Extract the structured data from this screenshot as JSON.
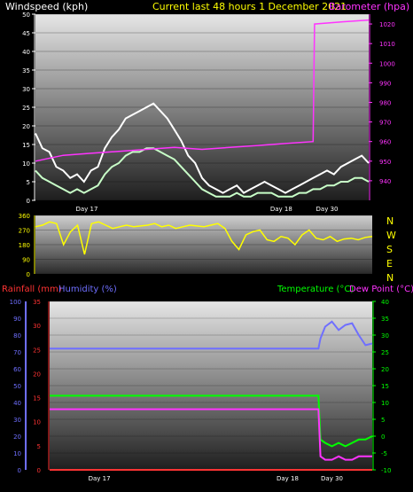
{
  "header": {
    "left_title": "Windspeed (kph)",
    "center_title": "Current last 48 hours 1 December 2021",
    "right_title": "Barometer (hpa)"
  },
  "colors": {
    "wind_white": "#ffffff",
    "wind_green": "#c8ffc8",
    "barometer": "#ff33ff",
    "direction": "#ffff00",
    "rain": "#ff3333",
    "humidity": "#6f6fff",
    "temperature": "#00ff00",
    "dewpoint": "#ff33ff",
    "center_title": "#ffff00"
  },
  "chart_data": [
    {
      "type": "line",
      "name": "wind-barometer",
      "title": "Current last 48 hours 1 December 2021",
      "ylabel": "Windspeed (kph)",
      "y2label": "Barometer (hpa)",
      "ylim": [
        0,
        50
      ],
      "y2lim": [
        930,
        1025
      ],
      "yticks": [
        "0",
        "5",
        "10",
        "15",
        "20",
        "25",
        "30",
        "35",
        "40",
        "45",
        "50"
      ],
      "y2ticks": [
        "940",
        "950",
        "960",
        "970",
        "980",
        "990",
        "1000",
        "1010",
        "1020"
      ],
      "xlim": [
        0,
        48
      ],
      "xtick_labels": [
        {
          "label": "Day 17",
          "x": 7.4
        },
        {
          "label": "Day 18",
          "x": 35.4
        },
        {
          "label": "Day 30",
          "x": 42.0
        }
      ],
      "series": [
        {
          "name": "Windspeed (kph)",
          "role": "gust",
          "color": "#ffffff",
          "x": [
            0,
            1,
            2,
            3,
            4,
            5,
            6,
            7,
            8,
            9,
            10,
            11,
            12,
            13,
            14,
            15,
            16,
            17,
            18,
            19,
            20,
            21,
            22,
            23,
            24,
            25,
            26,
            27,
            28,
            29,
            30,
            31,
            32,
            33,
            34,
            35,
            36,
            37,
            38,
            39,
            40,
            41,
            42,
            43,
            44,
            45,
            46,
            47,
            48
          ],
          "values": [
            18,
            14,
            13,
            9,
            8,
            6,
            7,
            5,
            8,
            9,
            14,
            17,
            19,
            22,
            23,
            24,
            25,
            26,
            24,
            22,
            19,
            16,
            12,
            10,
            6,
            4,
            3,
            2,
            3,
            4,
            2,
            3,
            4,
            5,
            4,
            3,
            2,
            3,
            4,
            5,
            6,
            7,
            8,
            7,
            9,
            10,
            11,
            12,
            10
          ]
        },
        {
          "name": "Windspeed (kph)",
          "role": "average",
          "color": "#c8ffc8",
          "x": [
            0,
            1,
            2,
            3,
            4,
            5,
            6,
            7,
            8,
            9,
            10,
            11,
            12,
            13,
            14,
            15,
            16,
            17,
            18,
            19,
            20,
            21,
            22,
            23,
            24,
            25,
            26,
            27,
            28,
            29,
            30,
            31,
            32,
            33,
            34,
            35,
            36,
            37,
            38,
            39,
            40,
            41,
            42,
            43,
            44,
            45,
            46,
            47,
            48
          ],
          "values": [
            8,
            6,
            5,
            4,
            3,
            2,
            3,
            2,
            3,
            4,
            7,
            9,
            10,
            12,
            13,
            13,
            14,
            14,
            13,
            12,
            11,
            9,
            7,
            5,
            3,
            2,
            1,
            1,
            1,
            2,
            1,
            1,
            2,
            2,
            2,
            1,
            1,
            1,
            2,
            2,
            3,
            3,
            4,
            4,
            5,
            5,
            6,
            6,
            5
          ]
        },
        {
          "name": "Barometer (hpa)",
          "axis": "right",
          "color": "#ff33ff",
          "x": [
            0,
            4,
            8,
            12,
            16,
            20,
            24,
            28,
            32,
            36,
            40,
            40.2,
            44,
            48
          ],
          "values": [
            950,
            953,
            954,
            955,
            956,
            957,
            956,
            957,
            958,
            959,
            960,
            1020,
            1021,
            1022
          ]
        }
      ]
    },
    {
      "type": "line",
      "name": "wind-direction",
      "ylim": [
        0,
        360
      ],
      "yticks": [
        "0",
        "90",
        "180",
        "270",
        "360"
      ],
      "compass_labels": [
        "N",
        "W",
        "S",
        "E",
        "N"
      ],
      "xlim": [
        0,
        48
      ],
      "series": [
        {
          "name": "Wind direction",
          "color": "#ffff00",
          "x": [
            0,
            1,
            2,
            3,
            4,
            5,
            6,
            7,
            8,
            9,
            10,
            11,
            12,
            13,
            14,
            15,
            16,
            17,
            18,
            19,
            20,
            21,
            22,
            23,
            24,
            25,
            26,
            27,
            28,
            29,
            30,
            31,
            32,
            33,
            34,
            35,
            36,
            37,
            38,
            39,
            40,
            41,
            42,
            43,
            44,
            45,
            46,
            47,
            48
          ],
          "values": [
            290,
            300,
            320,
            310,
            180,
            260,
            300,
            120,
            310,
            320,
            300,
            280,
            290,
            300,
            290,
            295,
            300,
            310,
            290,
            300,
            280,
            290,
            300,
            295,
            290,
            300,
            310,
            280,
            200,
            150,
            240,
            260,
            270,
            210,
            200,
            230,
            220,
            180,
            240,
            270,
            220,
            210,
            230,
            200,
            215,
            220,
            210,
            225,
            230
          ]
        }
      ]
    },
    {
      "type": "line",
      "name": "rain-humidity-temperature",
      "ylabel": "Rainfall (mm)",
      "ylabel2": "Humidity (%)",
      "y2label": "Temperature (°C)",
      "y2label2": "Dew Point (°C)",
      "humidity_ylim": [
        0,
        100
      ],
      "humidity_ticks": [
        "0",
        "10",
        "20",
        "30",
        "40",
        "50",
        "60",
        "70",
        "80",
        "90",
        "100"
      ],
      "rain_ylim": [
        0,
        35
      ],
      "rain_ticks": [
        "0",
        "5",
        "10",
        "15",
        "20",
        "25",
        "30",
        "35"
      ],
      "temp_ylim": [
        -10,
        40
      ],
      "temp_ticks": [
        "-10",
        "-5",
        "0",
        "5",
        "10",
        "15",
        "20",
        "25",
        "30",
        "35",
        "40"
      ],
      "xlim": [
        0,
        48
      ],
      "xtick_labels": [
        {
          "label": "Day 17",
          "x": 7.4
        },
        {
          "label": "Day 18",
          "x": 35.4
        },
        {
          "label": "Day 30",
          "x": 42.0
        }
      ],
      "series": [
        {
          "name": "Rainfall (mm)",
          "axis": "rain",
          "color": "#ff3333",
          "x": [
            0,
            48
          ],
          "values": [
            0,
            0
          ]
        },
        {
          "name": "Humidity (%)",
          "axis": "humidity",
          "color": "#6f6fff",
          "x": [
            0,
            40,
            40.3,
            41,
            42,
            43,
            44,
            45,
            46,
            47,
            48
          ],
          "values": [
            72,
            72,
            78,
            85,
            88,
            83,
            86,
            87,
            80,
            74,
            75
          ]
        },
        {
          "name": "Temperature (°C)",
          "axis": "temp",
          "color": "#00ff00",
          "x": [
            0,
            40,
            40.3,
            41,
            42,
            43,
            44,
            45,
            46,
            47,
            48
          ],
          "values": [
            12,
            12,
            -1,
            -2,
            -3,
            -2,
            -3,
            -2,
            -1,
            -1,
            0
          ]
        },
        {
          "name": "Dew Point (°C)",
          "axis": "temp",
          "color": "#ff33ff",
          "x": [
            0,
            40,
            40.3,
            41,
            42,
            43,
            44,
            45,
            46,
            47,
            48
          ],
          "values": [
            8,
            8,
            -6,
            -7,
            -7,
            -6,
            -7,
            -7,
            -6,
            -6,
            -6
          ]
        }
      ]
    }
  ],
  "bottom_header": {
    "rain_label": "Rainfall (mm)",
    "humidity_label": "Humidity (%)",
    "temperature_label": "Temperature (°C)",
    "dewpoint_label": "Dew Point (°C)"
  }
}
